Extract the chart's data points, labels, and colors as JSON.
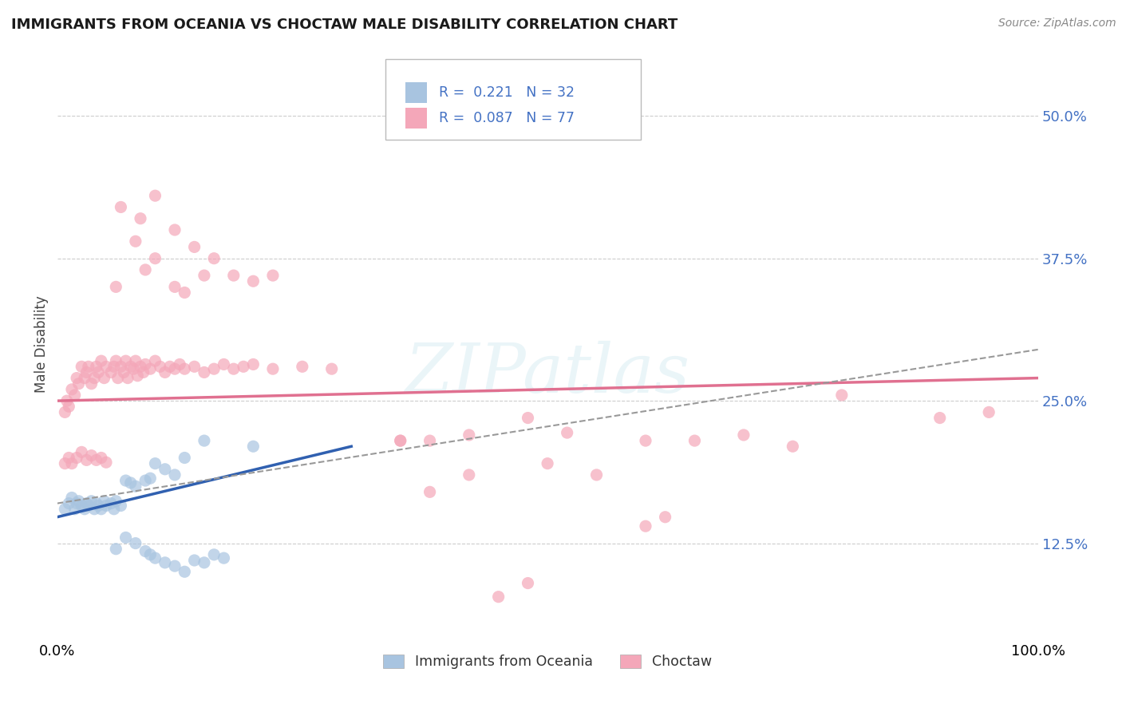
{
  "title": "IMMIGRANTS FROM OCEANIA VS CHOCTAW MALE DISABILITY CORRELATION CHART",
  "source_text": "Source: ZipAtlas.com",
  "ylabel": "Male Disability",
  "xlim": [
    0.0,
    1.0
  ],
  "ylim": [
    0.04,
    0.56
  ],
  "yticks": [
    0.125,
    0.25,
    0.375,
    0.5
  ],
  "yticklabels": [
    "12.5%",
    "25.0%",
    "37.5%",
    "50.0%"
  ],
  "xticks": [
    0.0,
    1.0
  ],
  "xticklabels": [
    "0.0%",
    "100.0%"
  ],
  "color_oceania": "#a8c4e0",
  "color_choctaw": "#f4a7b9",
  "color_blue_text": "#4472c4",
  "color_pink_line": "#e07090",
  "color_blue_line": "#3060b0",
  "color_dashed": "#999999",
  "scatter_oceania": [
    [
      0.008,
      0.155
    ],
    [
      0.012,
      0.16
    ],
    [
      0.015,
      0.165
    ],
    [
      0.018,
      0.155
    ],
    [
      0.02,
      0.16
    ],
    [
      0.022,
      0.162
    ],
    [
      0.025,
      0.158
    ],
    [
      0.028,
      0.155
    ],
    [
      0.03,
      0.16
    ],
    [
      0.032,
      0.158
    ],
    [
      0.035,
      0.162
    ],
    [
      0.038,
      0.155
    ],
    [
      0.04,
      0.16
    ],
    [
      0.042,
      0.158
    ],
    [
      0.045,
      0.155
    ],
    [
      0.048,
      0.162
    ],
    [
      0.05,
      0.158
    ],
    [
      0.055,
      0.16
    ],
    [
      0.058,
      0.155
    ],
    [
      0.06,
      0.162
    ],
    [
      0.065,
      0.158
    ],
    [
      0.07,
      0.18
    ],
    [
      0.075,
      0.178
    ],
    [
      0.08,
      0.175
    ],
    [
      0.09,
      0.18
    ],
    [
      0.095,
      0.182
    ],
    [
      0.1,
      0.195
    ],
    [
      0.11,
      0.19
    ],
    [
      0.12,
      0.185
    ],
    [
      0.13,
      0.2
    ],
    [
      0.15,
      0.215
    ],
    [
      0.2,
      0.21
    ]
  ],
  "scatter_oceania_low": [
    [
      0.06,
      0.12
    ],
    [
      0.07,
      0.13
    ],
    [
      0.08,
      0.125
    ],
    [
      0.09,
      0.118
    ],
    [
      0.095,
      0.115
    ],
    [
      0.1,
      0.112
    ],
    [
      0.11,
      0.108
    ],
    [
      0.12,
      0.105
    ],
    [
      0.13,
      0.1
    ],
    [
      0.14,
      0.11
    ],
    [
      0.15,
      0.108
    ],
    [
      0.16,
      0.115
    ],
    [
      0.17,
      0.112
    ]
  ],
  "scatter_choctaw_main": [
    [
      0.008,
      0.24
    ],
    [
      0.01,
      0.25
    ],
    [
      0.012,
      0.245
    ],
    [
      0.015,
      0.26
    ],
    [
      0.018,
      0.255
    ],
    [
      0.02,
      0.27
    ],
    [
      0.022,
      0.265
    ],
    [
      0.025,
      0.28
    ],
    [
      0.028,
      0.27
    ],
    [
      0.03,
      0.275
    ],
    [
      0.032,
      0.28
    ],
    [
      0.035,
      0.265
    ],
    [
      0.038,
      0.27
    ],
    [
      0.04,
      0.28
    ],
    [
      0.042,
      0.275
    ],
    [
      0.045,
      0.285
    ],
    [
      0.048,
      0.27
    ],
    [
      0.05,
      0.28
    ],
    [
      0.055,
      0.275
    ],
    [
      0.058,
      0.28
    ],
    [
      0.06,
      0.285
    ],
    [
      0.062,
      0.27
    ],
    [
      0.065,
      0.28
    ],
    [
      0.068,
      0.275
    ],
    [
      0.07,
      0.285
    ],
    [
      0.072,
      0.27
    ],
    [
      0.075,
      0.28
    ],
    [
      0.078,
      0.278
    ],
    [
      0.08,
      0.285
    ],
    [
      0.082,
      0.272
    ],
    [
      0.085,
      0.28
    ],
    [
      0.088,
      0.275
    ],
    [
      0.09,
      0.282
    ],
    [
      0.095,
      0.278
    ],
    [
      0.1,
      0.285
    ],
    [
      0.105,
      0.28
    ],
    [
      0.11,
      0.275
    ],
    [
      0.115,
      0.28
    ],
    [
      0.12,
      0.278
    ],
    [
      0.125,
      0.282
    ],
    [
      0.13,
      0.278
    ],
    [
      0.14,
      0.28
    ],
    [
      0.15,
      0.275
    ],
    [
      0.16,
      0.278
    ],
    [
      0.17,
      0.282
    ],
    [
      0.18,
      0.278
    ],
    [
      0.19,
      0.28
    ],
    [
      0.2,
      0.282
    ],
    [
      0.22,
      0.278
    ],
    [
      0.25,
      0.28
    ],
    [
      0.28,
      0.278
    ]
  ],
  "scatter_choctaw_high": [
    [
      0.06,
      0.35
    ],
    [
      0.08,
      0.39
    ],
    [
      0.09,
      0.365
    ],
    [
      0.1,
      0.375
    ],
    [
      0.12,
      0.35
    ],
    [
      0.13,
      0.345
    ],
    [
      0.15,
      0.36
    ],
    [
      0.16,
      0.375
    ],
    [
      0.18,
      0.36
    ],
    [
      0.2,
      0.355
    ],
    [
      0.22,
      0.36
    ],
    [
      0.065,
      0.42
    ],
    [
      0.085,
      0.41
    ],
    [
      0.1,
      0.43
    ],
    [
      0.12,
      0.4
    ],
    [
      0.14,
      0.385
    ]
  ],
  "scatter_choctaw_low": [
    [
      0.008,
      0.195
    ],
    [
      0.012,
      0.2
    ],
    [
      0.015,
      0.195
    ],
    [
      0.02,
      0.2
    ],
    [
      0.025,
      0.205
    ],
    [
      0.03,
      0.198
    ],
    [
      0.035,
      0.202
    ],
    [
      0.04,
      0.198
    ],
    [
      0.045,
      0.2
    ],
    [
      0.05,
      0.196
    ]
  ],
  "scatter_choctaw_far": [
    [
      0.42,
      0.22
    ],
    [
      0.48,
      0.235
    ],
    [
      0.52,
      0.222
    ],
    [
      0.6,
      0.215
    ],
    [
      0.65,
      0.215
    ],
    [
      0.7,
      0.22
    ],
    [
      0.75,
      0.21
    ],
    [
      0.8,
      0.255
    ],
    [
      0.9,
      0.235
    ],
    [
      0.95,
      0.24
    ],
    [
      0.35,
      0.215
    ],
    [
      0.38,
      0.215
    ],
    [
      0.5,
      0.195
    ],
    [
      0.55,
      0.185
    ],
    [
      0.6,
      0.14
    ],
    [
      0.62,
      0.148
    ],
    [
      0.45,
      0.078
    ],
    [
      0.48,
      0.09
    ],
    [
      0.38,
      0.17
    ],
    [
      0.42,
      0.185
    ],
    [
      0.35,
      0.215
    ]
  ],
  "trendline_oceania": [
    [
      0.0,
      0.148
    ],
    [
      0.3,
      0.21
    ]
  ],
  "trendline_choctaw": [
    [
      0.0,
      0.25
    ],
    [
      1.0,
      0.27
    ]
  ],
  "trendline_dashed": [
    [
      0.0,
      0.16
    ],
    [
      1.0,
      0.295
    ]
  ],
  "watermark": "ZIPatlas",
  "legend_labels": [
    "Immigrants from Oceania",
    "Choctaw"
  ]
}
